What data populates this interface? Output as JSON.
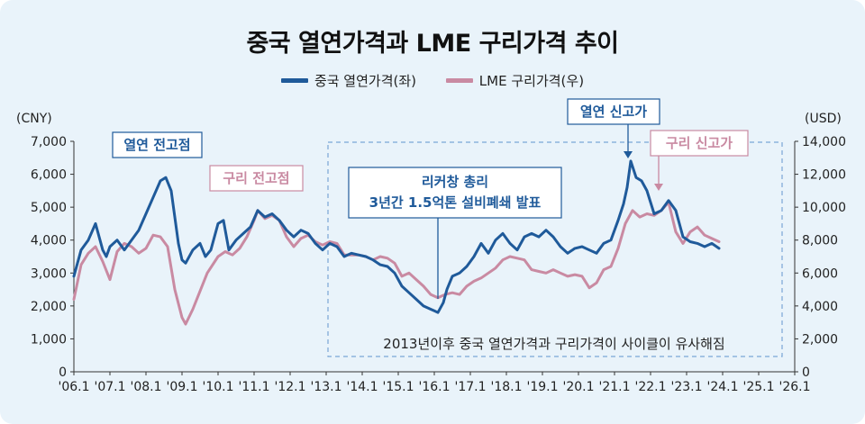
{
  "chart_data": {
    "type": "line",
    "title": "중국 열연가격과 LME 구리가격 추이",
    "left_unit": "(CNY)",
    "right_unit": "(USD)",
    "x_ticks": [
      "'06.1",
      "'07.1",
      "'08.1",
      "'09.1",
      "'10.1",
      "'11.1",
      "'12.1",
      "'13.1",
      "'14.1",
      "'15.1",
      "'16.1",
      "'17.1",
      "'18.1",
      "'19.1",
      "'20.1",
      "'21.1",
      "'22.1",
      "'23.1",
      "'24.1",
      "'25.1",
      "'26.1"
    ],
    "y_left": {
      "min": 0,
      "max": 7000,
      "ticks": [
        "0",
        "1,000",
        "2,000",
        "3,000",
        "4,000",
        "5,000",
        "6,000",
        "7,000"
      ]
    },
    "y_right": {
      "min": 0,
      "max": 14000,
      "ticks": [
        "0",
        "2,000",
        "4,000",
        "6,000",
        "8,000",
        "10,000",
        "12,000",
        "14,000"
      ]
    },
    "series": [
      {
        "name": "중국 열연가격(좌)",
        "axis": "left",
        "color": "#1f5a9a",
        "x": [
          2006.0,
          2006.2,
          2006.4,
          2006.6,
          2006.8,
          2006.9,
          2007.0,
          2007.2,
          2007.4,
          2007.6,
          2007.8,
          2008.0,
          2008.2,
          2008.4,
          2008.55,
          2008.7,
          2008.9,
          2009.0,
          2009.1,
          2009.3,
          2009.5,
          2009.65,
          2009.8,
          2010.0,
          2010.15,
          2010.3,
          2010.5,
          2010.7,
          2010.9,
          2011.1,
          2011.3,
          2011.5,
          2011.7,
          2011.9,
          2012.1,
          2012.3,
          2012.5,
          2012.7,
          2012.9,
          2013.1,
          2013.3,
          2013.5,
          2013.7,
          2013.9,
          2014.1,
          2014.3,
          2014.5,
          2014.7,
          2014.9,
          2015.1,
          2015.3,
          2015.5,
          2015.7,
          2015.9,
          2016.0,
          2016.1,
          2016.25,
          2016.35,
          2016.5,
          2016.7,
          2016.9,
          2017.1,
          2017.3,
          2017.5,
          2017.7,
          2017.9,
          2018.1,
          2018.3,
          2018.5,
          2018.7,
          2018.9,
          2019.1,
          2019.3,
          2019.5,
          2019.7,
          2019.9,
          2020.1,
          2020.3,
          2020.5,
          2020.7,
          2020.9,
          2021.1,
          2021.25,
          2021.35,
          2021.45,
          2021.6,
          2021.75,
          2021.9,
          2022.1,
          2022.3,
          2022.5,
          2022.7,
          2022.9,
          2023.1,
          2023.3,
          2023.5,
          2023.7,
          2023.9
        ],
        "values": [
          2900,
          3700,
          4000,
          4500,
          3700,
          3500,
          3800,
          4000,
          3700,
          4000,
          4300,
          4800,
          5300,
          5800,
          5900,
          5500,
          3900,
          3400,
          3300,
          3700,
          3900,
          3500,
          3700,
          4500,
          4600,
          3700,
          4000,
          4200,
          4400,
          4900,
          4700,
          4800,
          4600,
          4300,
          4100,
          4300,
          4200,
          3900,
          3700,
          3900,
          3800,
          3500,
          3600,
          3550,
          3500,
          3400,
          3250,
          3200,
          3000,
          2600,
          2400,
          2200,
          2000,
          1900,
          1850,
          1800,
          2100,
          2500,
          2900,
          3000,
          3200,
          3500,
          3900,
          3600,
          4000,
          4200,
          3900,
          3700,
          4100,
          4200,
          4100,
          4300,
          4100,
          3800,
          3600,
          3750,
          3800,
          3700,
          3600,
          3900,
          4000,
          4600,
          5100,
          5600,
          6400,
          5900,
          5800,
          5500,
          4800,
          4900,
          5200,
          4900,
          4100,
          3950,
          3900,
          3800,
          3900,
          3750
        ]
      },
      {
        "name": "LME 구리가격(우)",
        "axis": "right",
        "color": "#c98aa2",
        "x": [
          2006.0,
          2006.2,
          2006.4,
          2006.6,
          2006.8,
          2007.0,
          2007.2,
          2007.4,
          2007.6,
          2007.8,
          2008.0,
          2008.2,
          2008.4,
          2008.6,
          2008.8,
          2009.0,
          2009.1,
          2009.3,
          2009.5,
          2009.7,
          2010.0,
          2010.2,
          2010.4,
          2010.6,
          2010.8,
          2011.0,
          2011.1,
          2011.3,
          2011.5,
          2011.7,
          2011.9,
          2012.1,
          2012.3,
          2012.5,
          2012.7,
          2012.9,
          2013.1,
          2013.3,
          2013.5,
          2013.7,
          2013.9,
          2014.1,
          2014.3,
          2014.5,
          2014.7,
          2014.9,
          2015.1,
          2015.3,
          2015.5,
          2015.7,
          2015.9,
          2016.1,
          2016.3,
          2016.5,
          2016.7,
          2016.9,
          2017.1,
          2017.3,
          2017.5,
          2017.7,
          2017.9,
          2018.1,
          2018.3,
          2018.5,
          2018.7,
          2018.9,
          2019.1,
          2019.3,
          2019.5,
          2019.7,
          2019.9,
          2020.1,
          2020.3,
          2020.5,
          2020.7,
          2020.9,
          2021.1,
          2021.3,
          2021.5,
          2021.7,
          2021.9,
          2022.1,
          2022.3,
          2022.5,
          2022.7,
          2022.9,
          2023.1,
          2023.3,
          2023.5,
          2023.7,
          2023.9
        ],
        "values": [
          4400,
          6500,
          7200,
          7600,
          6700,
          5600,
          7300,
          7800,
          7600,
          7200,
          7500,
          8300,
          8200,
          7600,
          5000,
          3300,
          2900,
          3800,
          4900,
          6000,
          7000,
          7300,
          7100,
          7500,
          8200,
          9200,
          9800,
          9300,
          9500,
          9200,
          8200,
          7600,
          8100,
          8300,
          7900,
          7700,
          7900,
          7800,
          7100,
          7100,
          7100,
          7000,
          6800,
          7000,
          6900,
          6600,
          5800,
          6000,
          5600,
          5200,
          4700,
          4500,
          4700,
          4800,
          4700,
          5200,
          5500,
          5700,
          6000,
          6300,
          6800,
          7000,
          6900,
          6800,
          6200,
          6100,
          6000,
          6200,
          6000,
          5800,
          5900,
          5800,
          5100,
          5400,
          6200,
          6400,
          7500,
          9000,
          9800,
          9400,
          9600,
          9500,
          9800,
          10300,
          8500,
          7800,
          8500,
          8800,
          8300,
          8100,
          7900
        ]
      }
    ],
    "annotations": [
      {
        "text": "열연 전고점",
        "color": "#1f5a9a"
      },
      {
        "text": "구리 전고점",
        "color": "#c98aa2"
      },
      {
        "text": "열연 신고가",
        "color": "#1f5a9a"
      },
      {
        "text": "구리 신고가",
        "color": "#c98aa2"
      },
      {
        "lines": [
          "리커창 총리",
          "3년간 1.5억톤 설비폐쇄 발표"
        ],
        "color": "#1f5a9a"
      },
      {
        "text": "2013년이후 중국 열연가격과 구리가격이 사이클이 유사해짐",
        "color": "#222222"
      }
    ],
    "grid": false,
    "legend_position": "top-center"
  }
}
